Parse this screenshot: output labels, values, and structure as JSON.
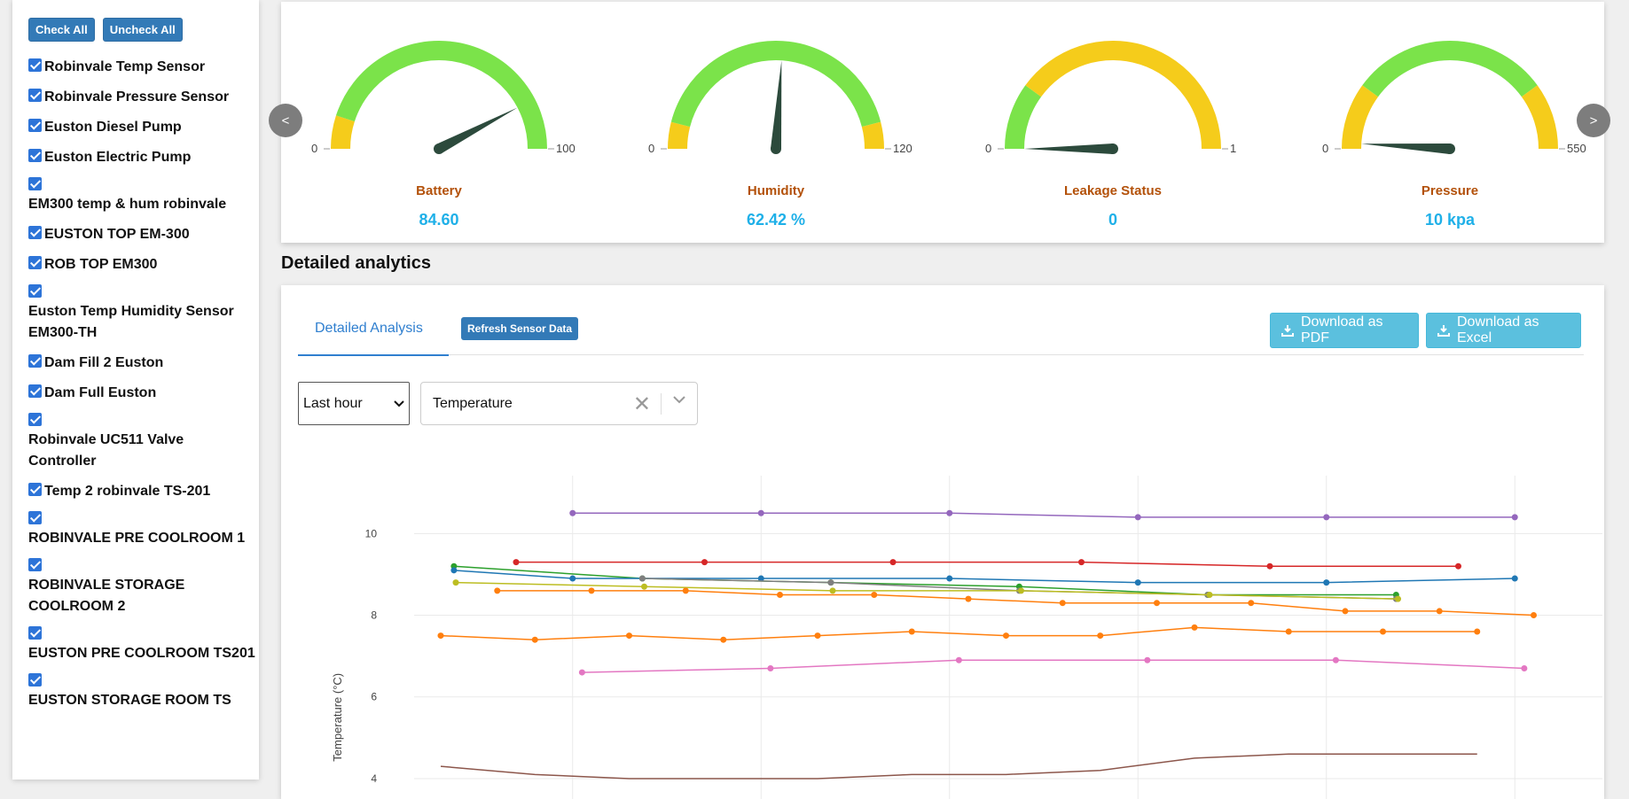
{
  "sidebar": {
    "check_all": "Check All",
    "uncheck_all": "Uncheck All",
    "items": [
      {
        "label": "Robinvale Temp Sensor",
        "stack": false
      },
      {
        "label": "Robinvale Pressure Sensor",
        "stack": false
      },
      {
        "label": "Euston Diesel Pump",
        "stack": false
      },
      {
        "label": "Euston Electric Pump",
        "stack": false
      },
      {
        "label": "EM300 temp & hum robinvale",
        "stack": true
      },
      {
        "label": "EUSTON TOP EM-300",
        "stack": false
      },
      {
        "label": "ROB TOP EM300",
        "stack": false
      },
      {
        "label": "Euston Temp Humidity Sensor EM300-TH",
        "stack": true
      },
      {
        "label": "Dam Fill 2 Euston",
        "stack": false
      },
      {
        "label": "Dam Full Euston",
        "stack": false
      },
      {
        "label": "Robinvale UC511 Valve Controller",
        "stack": true
      },
      {
        "label": "Temp 2 robinvale TS-201",
        "stack": false
      },
      {
        "label": "ROBINVALE PRE COOLROOM 1",
        "stack": true
      },
      {
        "label": "ROBINVALE STORAGE COOLROOM 2",
        "stack": true
      },
      {
        "label": "EUSTON PRE COOLROOM TS201",
        "stack": true
      },
      {
        "label": "EUSTON STORAGE ROOM TS",
        "stack": true
      }
    ]
  },
  "gauges": [
    {
      "label": "Battery",
      "value_text": "84.60",
      "value": 84.6,
      "min": 0,
      "max": 100,
      "min_label": "0",
      "max_label": "100",
      "bands": [
        [
          0,
          0.1,
          "#f5cc1b"
        ],
        [
          0.1,
          1,
          "#7be34a"
        ]
      ]
    },
    {
      "label": "Humidity",
      "value_text": "62.42 %",
      "value": 62.42,
      "min": 0,
      "max": 120,
      "min_label": "0",
      "max_label": "120",
      "bands": [
        [
          0,
          0.08,
          "#f5cc1b"
        ],
        [
          0.08,
          0.92,
          "#7be34a"
        ],
        [
          0.92,
          1,
          "#f5cc1b"
        ]
      ]
    },
    {
      "label": "Leakage Status",
      "value_text": "0",
      "value": 0,
      "min": 0,
      "max": 1,
      "min_label": "0",
      "max_label": "1",
      "bands": [
        [
          0,
          0.2,
          "#7be34a"
        ],
        [
          0.2,
          1,
          "#f5cc1b"
        ]
      ]
    },
    {
      "label": "Pressure",
      "value_text": "10 kpa",
      "value": 10,
      "min": 0,
      "max": 550,
      "min_label": "0",
      "max_label": "550",
      "bands": [
        [
          0,
          0.2,
          "#f5cc1b"
        ],
        [
          0.2,
          0.8,
          "#7be34a"
        ],
        [
          0.8,
          1,
          "#f5cc1b"
        ]
      ]
    }
  ],
  "nav": {
    "prev": "<",
    "next": ">"
  },
  "section_title": "Detailed analytics",
  "analytics": {
    "tab_label": "Detailed Analysis",
    "refresh_label": "Refresh Sensor Data",
    "download_pdf": "Download as PDF",
    "download_excel": "Download as Excel",
    "range_selected": "Last hour",
    "metric_selected": "Temperature"
  },
  "colors": {
    "needle": "#2c4a3c",
    "accent_blue": "#337ab7",
    "value_cyan": "#1fb0e8",
    "label_orange": "#b3510a"
  },
  "chart_data": {
    "type": "line",
    "ylabel": "Temperature (°C)",
    "y_ticks": [
      4,
      6,
      8,
      10
    ],
    "ylim": [
      3.5,
      11.2
    ],
    "xlim": [
      0,
      60
    ],
    "series": [
      {
        "color": "#9467bd",
        "markers": true,
        "x": [
          7,
          17,
          27,
          37,
          47,
          57
        ],
        "y": [
          10.5,
          10.5,
          10.5,
          10.4,
          10.4,
          10.4
        ]
      },
      {
        "color": "#d62728",
        "markers": true,
        "x": [
          4,
          14,
          24,
          34,
          44,
          54
        ],
        "y": [
          9.3,
          9.3,
          9.3,
          9.3,
          9.2,
          9.2
        ]
      },
      {
        "color": "#2ca02c",
        "markers": true,
        "x": [
          0.7,
          10.7,
          20.7,
          30.7,
          40.7,
          50.7
        ],
        "y": [
          9.2,
          8.9,
          8.8,
          8.7,
          8.5,
          8.5
        ]
      },
      {
        "color": "#1f77b4",
        "markers": true,
        "x": [
          0.7,
          7,
          17,
          27,
          37,
          47,
          57
        ],
        "y": [
          9.1,
          8.9,
          8.9,
          8.9,
          8.8,
          8.8,
          8.9
        ]
      },
      {
        "color": "#7f7f7f",
        "markers": true,
        "x": [
          10.7,
          20.7,
          30.7,
          40.7,
          50.7
        ],
        "y": [
          8.9,
          8.8,
          8.6,
          8.5,
          8.4
        ]
      },
      {
        "color": "#bcbd22",
        "markers": true,
        "x": [
          0.8,
          10.8,
          20.8,
          30.8,
          40.8,
          50.8
        ],
        "y": [
          8.8,
          8.7,
          8.6,
          8.6,
          8.5,
          8.4
        ]
      },
      {
        "color": "#ff7f0e",
        "markers": true,
        "x": [
          3,
          8,
          13,
          18,
          23,
          28,
          33,
          38,
          43,
          48,
          53,
          58
        ],
        "y": [
          8.6,
          8.6,
          8.6,
          8.5,
          8.5,
          8.4,
          8.3,
          8.3,
          8.3,
          8.1,
          8.1,
          8.0
        ]
      },
      {
        "color": "#ff7f0e",
        "markers": true,
        "x": [
          0,
          5,
          10,
          15,
          20,
          25,
          30,
          35,
          40,
          45,
          50,
          55
        ],
        "y": [
          7.5,
          7.4,
          7.5,
          7.4,
          7.5,
          7.6,
          7.5,
          7.5,
          7.7,
          7.6,
          7.6,
          7.6
        ]
      },
      {
        "color": "#e377c2",
        "markers": true,
        "x": [
          7.5,
          17.5,
          27.5,
          37.5,
          47.5,
          57.5
        ],
        "y": [
          6.6,
          6.7,
          6.9,
          6.9,
          6.9,
          6.7
        ]
      },
      {
        "color": "#8c564b",
        "markers": false,
        "x": [
          0,
          5,
          10,
          15,
          20,
          25,
          30,
          35,
          40,
          45,
          50,
          55
        ],
        "y": [
          4.3,
          4.1,
          4.0,
          4.0,
          4.0,
          4.1,
          4.1,
          4.2,
          4.5,
          4.6,
          4.6,
          4.6
        ]
      }
    ]
  }
}
